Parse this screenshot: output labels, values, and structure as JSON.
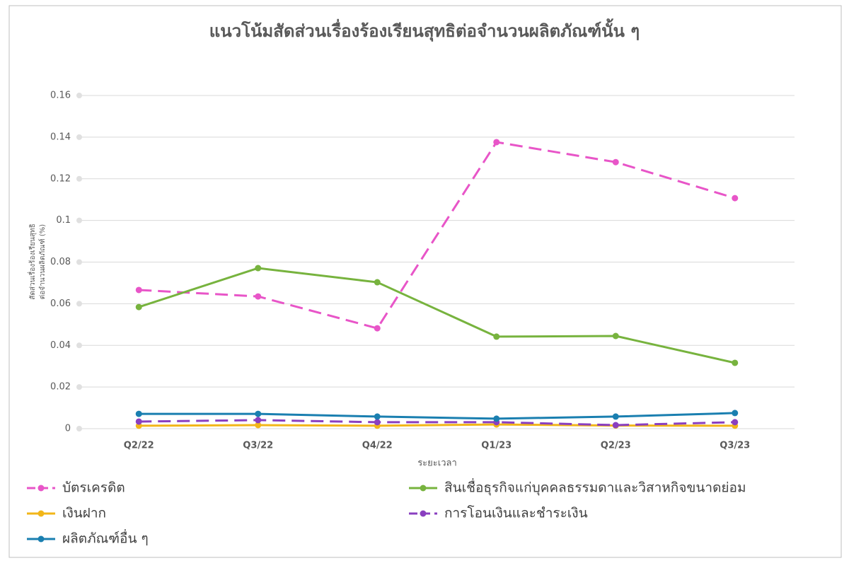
{
  "chart_data": {
    "type": "line",
    "title": "แนวโน้มสัดส่วนเรื่องร้องเรียนสุทธิต่อจำนวนผลิตภัณฑ์นั้น ๆ",
    "x_label": "ระยะเวลา",
    "y_label": [
      "สัดส่วนเรื่องร้องเรียนสุทธิ",
      "ต่อจำนวนผลิตภัณฑ์ (%)"
    ],
    "categories": [
      "Q2/22",
      "Q3/22",
      "Q4/22",
      "Q1/23",
      "Q2/23",
      "Q3/23"
    ],
    "ylim": [
      0,
      0.16
    ],
    "yticks": [
      0,
      0.02,
      0.04,
      0.06,
      0.08,
      0.1,
      0.12,
      0.14,
      0.16
    ],
    "grid": true,
    "legend": "bottom",
    "series": [
      {
        "name": "บัตรเครดิต",
        "color": "#e855c8",
        "dashed": true,
        "values": [
          0.0666,
          0.0635,
          0.0482,
          0.1376,
          0.128,
          0.1107
        ]
      },
      {
        "name": "สินเชื่อธุรกิจแก่บุคคลธรรมดาและวิสาหกิจขนาดย่อม",
        "color": "#77b33e",
        "dashed": false,
        "values": [
          0.0584,
          0.0771,
          0.0703,
          0.0442,
          0.0445,
          0.0316
        ]
      },
      {
        "name": "เงินฝาก",
        "color": "#f2b619",
        "dashed": false,
        "values": [
          0.0014,
          0.0017,
          0.0014,
          0.002,
          0.0015,
          0.0014
        ]
      },
      {
        "name": "การโอนเงินและชำระเงิน",
        "color": "#8a3fc0",
        "dashed": true,
        "values": [
          0.0034,
          0.0041,
          0.0031,
          0.0031,
          0.0017,
          0.0031
        ]
      },
      {
        "name": "ผลิตภัณฑ์อื่น ๆ",
        "color": "#1a7fb0",
        "dashed": false,
        "values": [
          0.0071,
          0.0071,
          0.0058,
          0.0048,
          0.0058,
          0.0075
        ]
      }
    ]
  }
}
